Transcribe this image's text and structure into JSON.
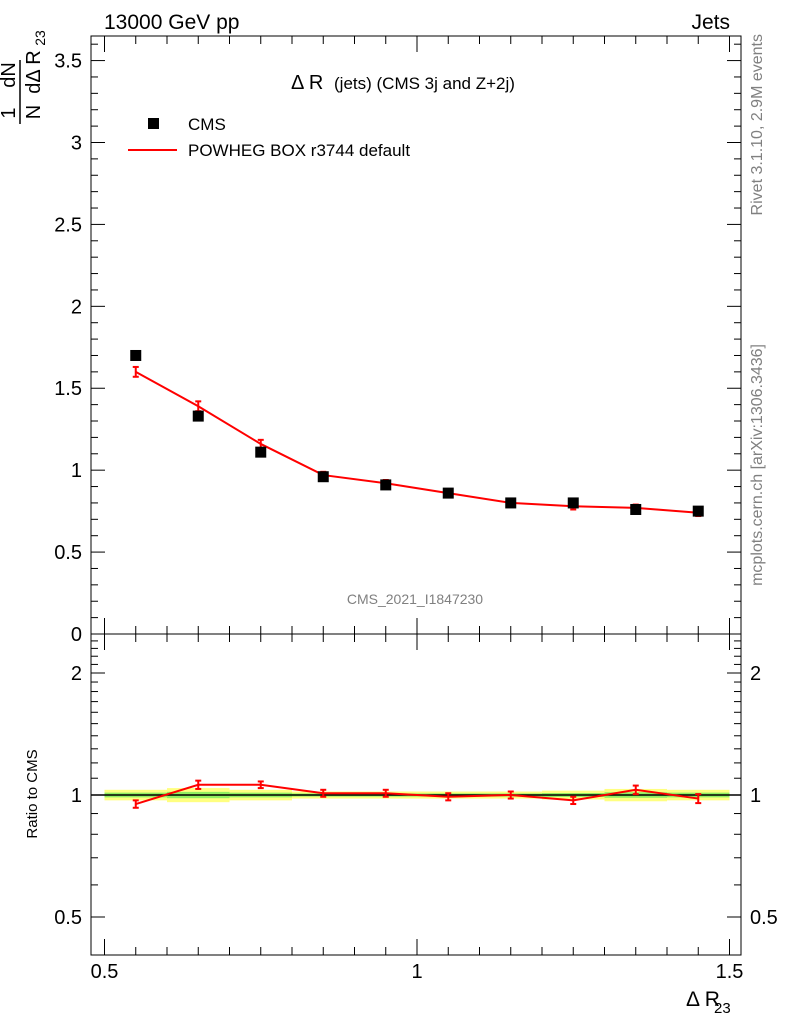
{
  "header": {
    "energy": "13000 GeV pp",
    "category": "Jets"
  },
  "side_labels": {
    "rivet": "Rivet 3.1.10,  2.9M events",
    "source": "mcplots.cern.ch [arXiv:1306.3436]"
  },
  "chart_data": [
    {
      "type": "scatter",
      "panel": "main",
      "title": "Δ R (jets) (CMS 3j and Z+2j)",
      "title_main": "Δ R",
      "title_sub": "(jets) (CMS 3j and Z+2j)",
      "ylabel": {
        "num": "1",
        "den": "N",
        "num2": "dN",
        "den2": "dΔ R",
        "sub": "23"
      },
      "watermark": "CMS_2021_I1847230",
      "xlim": [
        0.5,
        1.5
      ],
      "ylim": [
        0,
        3.65
      ],
      "yticks": [
        "0",
        "0.5",
        "1",
        "1.5",
        "2",
        "2.5",
        "3",
        "3.5"
      ],
      "legend": {
        "placement": "top-left",
        "data_label": "CMS",
        "mc_label": "POWHEG BOX r3744 default"
      },
      "x": [
        0.55,
        0.65,
        0.75,
        0.85,
        0.95,
        1.05,
        1.15,
        1.25,
        1.35,
        1.45
      ],
      "series": [
        {
          "name": "CMS",
          "values": [
            1.7,
            1.33,
            1.11,
            0.96,
            0.91,
            0.86,
            0.8,
            0.8,
            0.76,
            0.75
          ],
          "color": "#000000"
        },
        {
          "name": "POWHEG BOX r3744 default",
          "values": [
            1.6,
            1.39,
            1.16,
            0.97,
            0.92,
            0.86,
            0.8,
            0.78,
            0.77,
            0.74
          ],
          "errors": [
            0.03,
            0.03,
            0.025,
            0.02,
            0.02,
            0.02,
            0.02,
            0.02,
            0.02,
            0.02
          ],
          "color": "#ff0000"
        }
      ]
    },
    {
      "type": "line",
      "panel": "ratio",
      "ylabel": "Ratio to CMS",
      "xlabel": "Δ R",
      "xlabel_sub": "23",
      "xlim": [
        0.5,
        1.5
      ],
      "xticks": [
        "0.5",
        "1",
        "1.5"
      ],
      "ylim": [
        0.4,
        2.4
      ],
      "ytick_labels": [
        "0.5",
        "1",
        "2"
      ],
      "x": [
        0.55,
        0.65,
        0.75,
        0.85,
        0.95,
        1.05,
        1.15,
        1.25,
        1.35,
        1.45
      ],
      "band_data": [
        0.03,
        0.04,
        0.03,
        0.02,
        0.02,
        0.02,
        0.02,
        0.025,
        0.035,
        0.03
      ],
      "series": [
        {
          "name": "POWHEG BOX r3744 default",
          "values": [
            0.95,
            1.06,
            1.06,
            1.01,
            1.01,
            0.99,
            1.0,
            0.97,
            1.03,
            0.98
          ],
          "errors": [
            0.02,
            0.025,
            0.02,
            0.02,
            0.02,
            0.02,
            0.02,
            0.02,
            0.025,
            0.025
          ],
          "color": "#ff0000"
        }
      ]
    }
  ]
}
